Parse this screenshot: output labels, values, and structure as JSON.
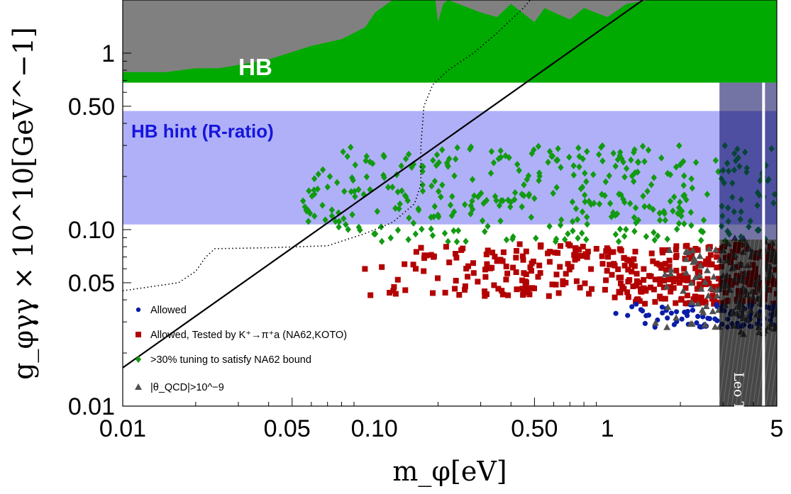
{
  "chart_data": {
    "type": "scatter",
    "xlabel": "m_φ[eV]",
    "ylabel": "g_φγγ × 10^10[GeV^−1]",
    "xscale": "log",
    "yscale": "log",
    "xlim": [
      0.01,
      5
    ],
    "ylim": [
      0.01,
      2.0
    ],
    "x_ticks": [
      {
        "value": 0.01,
        "label": "0.01"
      },
      {
        "value": 0.05,
        "label": "0.05"
      },
      {
        "value": 0.1,
        "label": "0.10"
      },
      {
        "value": 0.5,
        "label": "0.50"
      },
      {
        "value": 1,
        "label": "1"
      },
      {
        "value": 5,
        "label": "5"
      }
    ],
    "y_ticks": [
      {
        "value": 0.01,
        "label": "0.01"
      },
      {
        "value": 0.05,
        "label": "0.05"
      },
      {
        "value": 0.1,
        "label": "0.10"
      },
      {
        "value": 0.5,
        "label": "0.50"
      },
      {
        "value": 1,
        "label": "1"
      }
    ],
    "regions": {
      "hb": {
        "label": "HB",
        "y_min": 0.68,
        "color": "#00aa00"
      },
      "hb_hint": {
        "label": "HB hint (R-ratio)",
        "y_range": [
          0.107,
          0.47
        ],
        "color": "#b0b0f8",
        "text_color": "#1515dd"
      },
      "leo_t": {
        "label": "Leo T",
        "x_range": [
          2.9,
          5.0
        ],
        "color": "#000000"
      },
      "gray_excluded": {
        "color": "#808080",
        "boundary": [
          [
            0.01,
            1.95
          ],
          [
            0.013,
            1.5
          ],
          [
            0.02,
            1.3
          ],
          [
            0.026,
            1.8
          ],
          [
            0.03,
            2.0
          ],
          [
            0.06,
            2.0
          ],
          [
            0.07,
            1.6
          ],
          [
            0.09,
            1.1
          ],
          [
            0.1,
            1.0
          ],
          [
            0.1,
            0.75
          ],
          [
            0.01,
            0.75
          ]
        ]
      },
      "green_top_edge": [
        [
          0.08,
          0.68
        ],
        [
          0.08,
          1.2
        ],
        [
          0.1,
          1.4
        ],
        [
          0.11,
          1.7
        ],
        [
          0.13,
          2.0
        ],
        [
          0.195,
          2.0
        ],
        [
          0.2,
          1.5
        ],
        [
          0.21,
          1.9
        ],
        [
          0.22,
          2.0
        ],
        [
          0.3,
          1.7
        ],
        [
          0.35,
          1.6
        ],
        [
          0.4,
          1.9
        ],
        [
          0.5,
          1.5
        ],
        [
          0.55,
          1.8
        ],
        [
          0.7,
          1.55
        ],
        [
          0.8,
          1.8
        ],
        [
          1.0,
          1.6
        ],
        [
          1.2,
          1.9
        ],
        [
          1.5,
          2.0
        ]
      ]
    },
    "curves": {
      "solid_line": {
        "style": "solid",
        "points": [
          [
            0.01,
            0.0165
          ],
          [
            1.4,
            2.0
          ]
        ]
      },
      "dotted_curve": {
        "style": "dotted",
        "points": [
          [
            0.01,
            0.045
          ],
          [
            0.017,
            0.05
          ],
          [
            0.02,
            0.058
          ],
          [
            0.022,
            0.07
          ],
          [
            0.024,
            0.078
          ],
          [
            0.04,
            0.079
          ],
          [
            0.07,
            0.081
          ],
          [
            0.1,
            0.095
          ],
          [
            0.13,
            0.11
          ],
          [
            0.16,
            0.14
          ],
          [
            0.17,
            0.18
          ],
          [
            0.17,
            0.3
          ],
          [
            0.175,
            0.5
          ],
          [
            0.19,
            0.66
          ],
          [
            0.22,
            0.8
          ],
          [
            0.28,
            1.0
          ],
          [
            0.35,
            1.3
          ],
          [
            0.45,
            1.8
          ],
          [
            0.48,
            2.0
          ]
        ]
      }
    },
    "series": [
      {
        "name": "Allowed",
        "marker": "circle",
        "color": "#0a1ea8",
        "x_range": [
          0.9,
          5.0
        ],
        "y_range": [
          0.028,
          0.038
        ],
        "count": 90
      },
      {
        "name": "Allowed, Tested by K⁺→π⁺a (NA62,KOTO)",
        "marker": "square",
        "color": "#b30000",
        "x_range": [
          0.08,
          5.0
        ],
        "y_range": [
          0.038,
          0.088
        ],
        "count": 420
      },
      {
        "name": ">30% tuning to satisfy NA62 bound",
        "marker": "diamond",
        "color": "#129a12",
        "x_range": [
          0.055,
          5.0
        ],
        "y_range": [
          0.085,
          0.3
        ],
        "count": 380
      },
      {
        "name": "|θ_QCD|>10^−9",
        "marker": "triangle",
        "color": "#505050",
        "x_range": [
          1.5,
          5.0
        ],
        "y_range": [
          0.025,
          0.09
        ],
        "count": 140
      }
    ],
    "legend": {
      "position": "bottom-left",
      "entries": [
        {
          "label": "Allowed"
        },
        {
          "label": "Allowed, Tested by K⁺→π⁺a (NA62,KOTO)"
        },
        {
          "label": ">30% tuning to satisfy NA62 bound"
        },
        {
          "label": "|θ_QCD|>10^−9"
        }
      ]
    }
  }
}
